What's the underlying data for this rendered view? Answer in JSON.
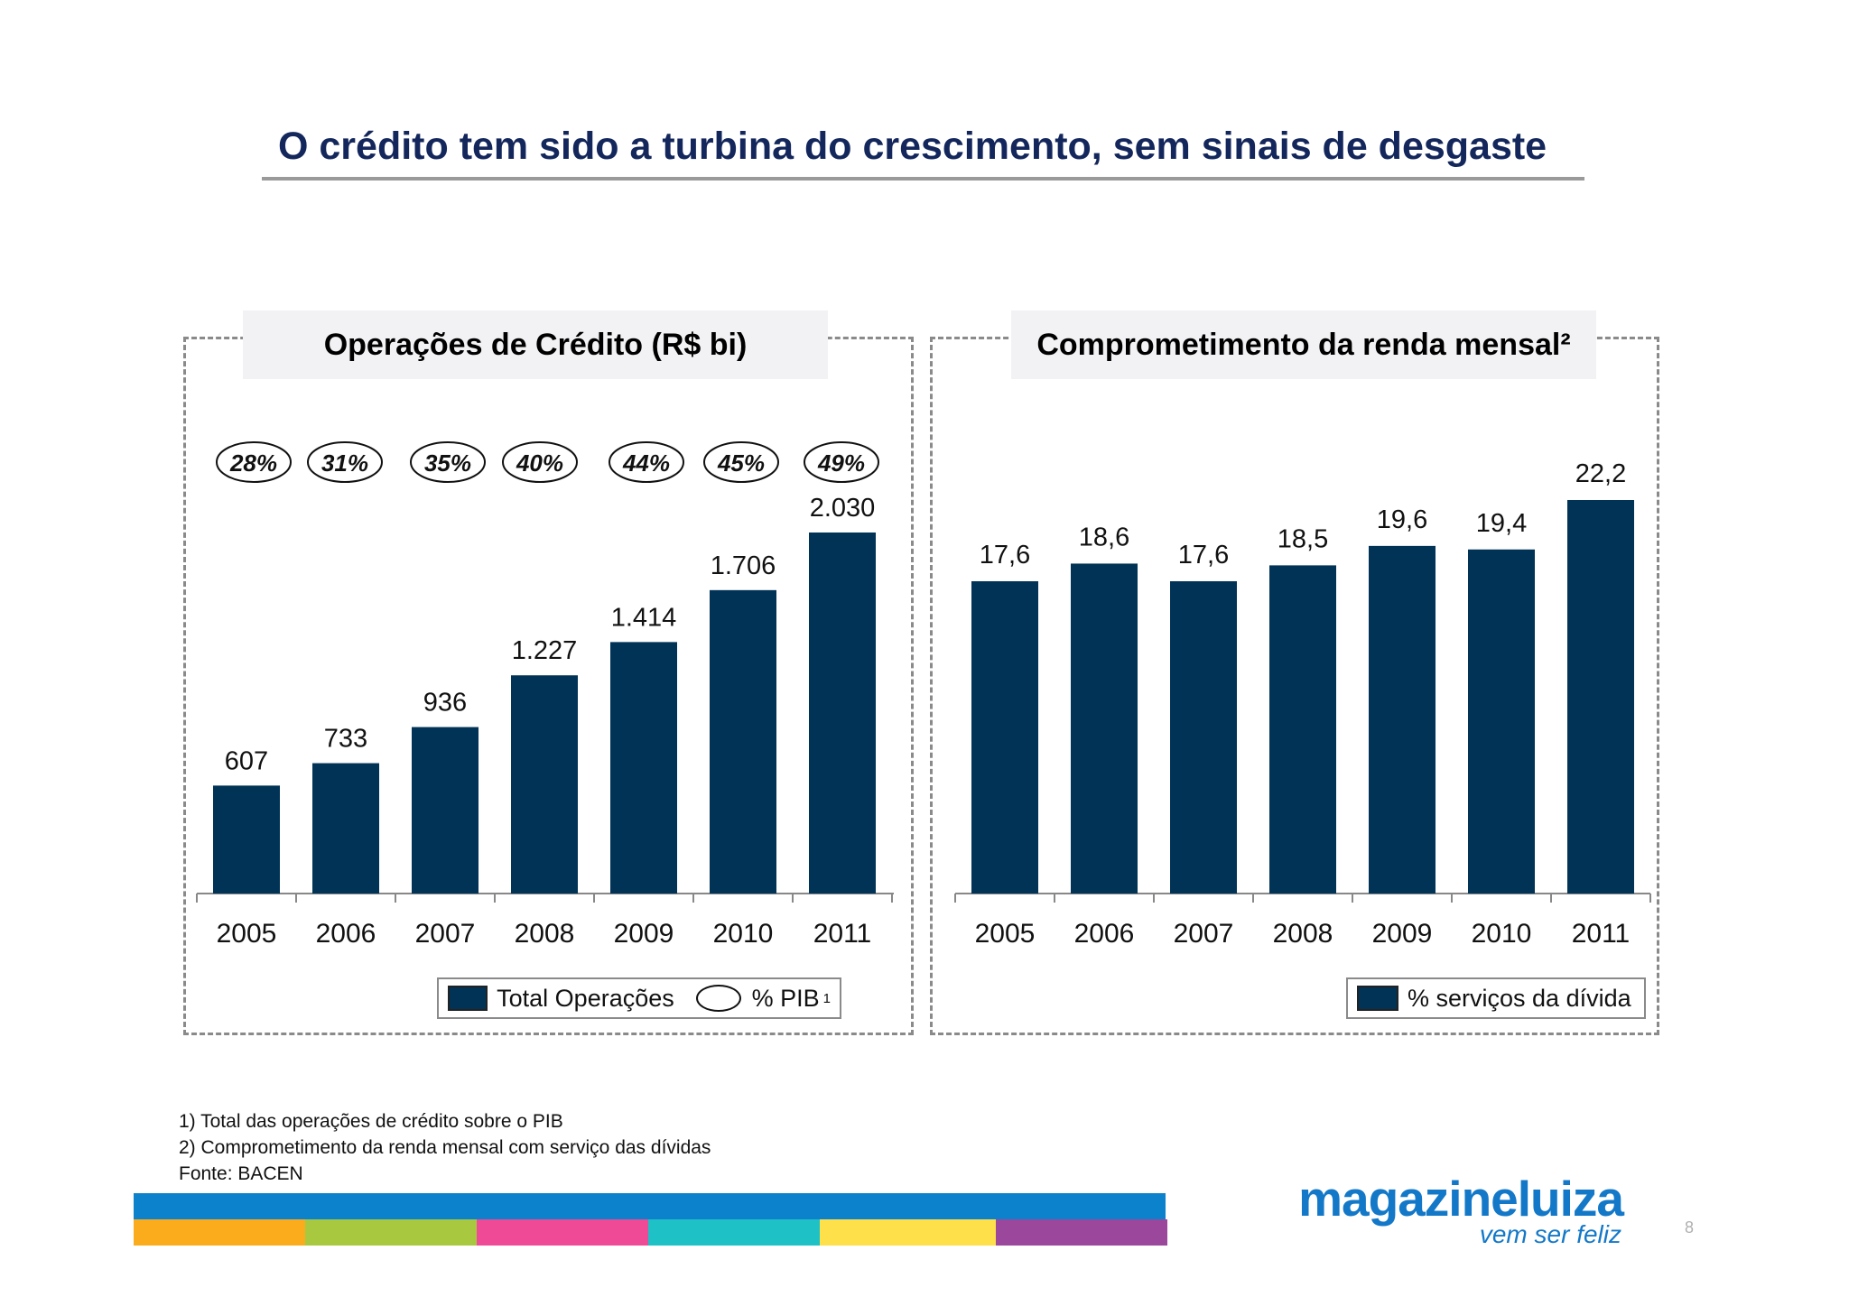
{
  "title": "O crédito tem sido a turbina do crescimento, sem sinais de desgaste",
  "colors": {
    "bar": "#003356",
    "title": "#14275c",
    "accent": "#0d82cc"
  },
  "chart_data": [
    {
      "type": "bar",
      "title": "Operações de Crédito (R$ bi)",
      "categories": [
        "2005",
        "2006",
        "2007",
        "2008",
        "2009",
        "2010",
        "2011"
      ],
      "series": [
        {
          "name": "Total Operações",
          "values": [
            607,
            733,
            936,
            1227,
            1414,
            1706,
            2030
          ],
          "labels": [
            "607",
            "733",
            "936",
            "1.227",
            "1.414",
            "1.706",
            "2.030"
          ]
        },
        {
          "name": "% PIB",
          "values": [
            28,
            31,
            35,
            40,
            44,
            45,
            49
          ],
          "labels": [
            "28%",
            "31%",
            "35%",
            "40%",
            "44%",
            "45%",
            "49%"
          ]
        }
      ],
      "legend": [
        "Total Operações",
        "% PIB"
      ],
      "legend_superscript": "1",
      "ylim": [
        0,
        2030
      ]
    },
    {
      "type": "bar",
      "title": "Comprometimento da renda mensal²",
      "categories": [
        "2005",
        "2006",
        "2007",
        "2008",
        "2009",
        "2010",
        "2011"
      ],
      "series": [
        {
          "name": "% serviços da dívida",
          "values": [
            17.6,
            18.6,
            17.6,
            18.5,
            19.6,
            19.4,
            22.2
          ],
          "labels": [
            "17,6",
            "18,6",
            "17,6",
            "18,5",
            "19,6",
            "19,4",
            "22,2"
          ]
        }
      ],
      "legend": [
        "% serviços da dívida"
      ]
    }
  ],
  "footnotes": [
    "1)  Total das operações de crédito sobre o PIB",
    "2) Comprometimento da renda mensal com serviço das dívidas",
    "Fonte: BACEN"
  ],
  "logo": {
    "name": "magazineluiza",
    "tagline": "vem ser feliz"
  },
  "page_number": "8",
  "stripe_colors": [
    "#fbac1c",
    "#a8c840",
    "#ee4a95",
    "#1ec2c6",
    "#fde04a",
    "#9a479c"
  ]
}
